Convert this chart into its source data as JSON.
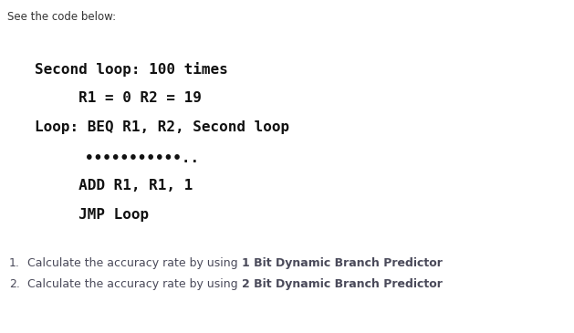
{
  "bg_color": "#ffffff",
  "header_text": "See the code below:",
  "header_fontsize": 8.5,
  "header_color": "#333333",
  "code_lines": [
    {
      "text": "Second loop: 100 times",
      "indent": 0.07
    },
    {
      "text": "     R1 = 0 R2 = 19",
      "indent": 0.07
    },
    {
      "text": "Loop: BEQ R1, R2, Second loop",
      "indent": 0.07
    },
    {
      "text": "          ..........",
      "indent": 0.07
    },
    {
      "text": "          ADD R1, R1, 1",
      "indent": 0.07
    },
    {
      "text": "          JMP Loop",
      "indent": 0.07
    }
  ],
  "code_fontsize": 11.5,
  "code_color": "#111111",
  "list_items": [
    {
      "number": "1.",
      "prefix": "Calculate the accuracy rate by using ",
      "bold_part": "1 Bit Dynamic Branch Predictor"
    },
    {
      "number": "2.",
      "prefix": "Calculate the accuracy rate by using ",
      "bold_part": "2 Bit Dynamic Branch Predictor"
    }
  ],
  "list_fontsize": 9.0,
  "list_color": "#4a4a5a"
}
